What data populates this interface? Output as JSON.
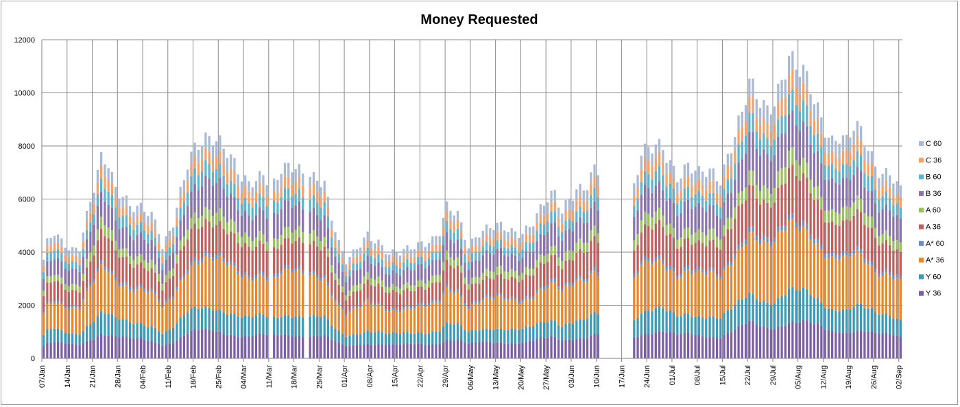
{
  "chart_data": {
    "type": "bar",
    "stacked": true,
    "title": "Money Requested",
    "xlabel": "",
    "ylabel": "",
    "ylim": [
      0,
      12000
    ],
    "ystep": 2000,
    "grid": true,
    "legend_position": "right",
    "x_start": "07/Jan",
    "days_total": 239,
    "gap_days": [
      {
        "from": 63,
        "to": 63
      },
      {
        "from": 73,
        "to": 73
      },
      {
        "from": 155,
        "to": 163
      }
    ],
    "tick_labels": [
      "07/Jan",
      "14/Jan",
      "21/Jan",
      "28/Jan",
      "04/Feb",
      "11/Feb",
      "18/Feb",
      "25/Feb",
      "04/Mar",
      "11/Mar",
      "18/Mar",
      "25/Mar",
      "01/Apr",
      "08/Apr",
      "15/Apr",
      "22/Apr",
      "29/Apr",
      "06/May",
      "13/May",
      "20/May",
      "27/May",
      "03/Jun",
      "10/Jun",
      "17/Jun",
      "24/Jun",
      "01/Jul",
      "08/Jul",
      "15/Jul",
      "22/Jul",
      "29/Jul",
      "05/Aug",
      "12/Aug",
      "19/Aug",
      "26/Aug",
      "02/Sep"
    ],
    "total_anchors": [
      {
        "day": 0,
        "value": 3650
      },
      {
        "day": 1,
        "value": 4300
      },
      {
        "day": 3,
        "value": 4750
      },
      {
        "day": 5,
        "value": 4450
      },
      {
        "day": 8,
        "value": 4150
      },
      {
        "day": 10,
        "value": 4200
      },
      {
        "day": 12,
        "value": 5300
      },
      {
        "day": 14,
        "value": 6300
      },
      {
        "day": 16,
        "value": 7400
      },
      {
        "day": 18,
        "value": 7350
      },
      {
        "day": 20,
        "value": 6450
      },
      {
        "day": 22,
        "value": 6300
      },
      {
        "day": 24,
        "value": 5800
      },
      {
        "day": 27,
        "value": 5600
      },
      {
        "day": 30,
        "value": 5300
      },
      {
        "day": 32,
        "value": 4800
      },
      {
        "day": 33,
        "value": 4200
      },
      {
        "day": 34,
        "value": 4500
      },
      {
        "day": 36,
        "value": 5200
      },
      {
        "day": 38,
        "value": 6300
      },
      {
        "day": 40,
        "value": 7300
      },
      {
        "day": 42,
        "value": 7800
      },
      {
        "day": 45,
        "value": 8200
      },
      {
        "day": 47,
        "value": 8380
      },
      {
        "day": 49,
        "value": 8250
      },
      {
        "day": 51,
        "value": 7900
      },
      {
        "day": 53,
        "value": 7300
      },
      {
        "day": 55,
        "value": 6700
      },
      {
        "day": 57,
        "value": 6450
      },
      {
        "day": 59,
        "value": 6700
      },
      {
        "day": 61,
        "value": 7000
      },
      {
        "day": 62,
        "value": 6900
      },
      {
        "day": 64,
        "value": 6700
      },
      {
        "day": 66,
        "value": 7200
      },
      {
        "day": 70,
        "value": 7050
      },
      {
        "day": 72,
        "value": 6800
      },
      {
        "day": 74,
        "value": 6800
      },
      {
        "day": 76,
        "value": 6900
      },
      {
        "day": 78,
        "value": 6700
      },
      {
        "day": 80,
        "value": 5400
      },
      {
        "day": 82,
        "value": 4300
      },
      {
        "day": 84,
        "value": 3600
      },
      {
        "day": 86,
        "value": 3900
      },
      {
        "day": 90,
        "value": 4700
      },
      {
        "day": 93,
        "value": 4400
      },
      {
        "day": 96,
        "value": 3900
      },
      {
        "day": 99,
        "value": 3950
      },
      {
        "day": 102,
        "value": 4200
      },
      {
        "day": 105,
        "value": 4400
      },
      {
        "day": 108,
        "value": 4450
      },
      {
        "day": 110,
        "value": 4700
      },
      {
        "day": 112,
        "value": 5600
      },
      {
        "day": 115,
        "value": 5400
      },
      {
        "day": 118,
        "value": 4300
      },
      {
        "day": 121,
        "value": 4800
      },
      {
        "day": 124,
        "value": 4900
      },
      {
        "day": 127,
        "value": 4900
      },
      {
        "day": 130,
        "value": 4750
      },
      {
        "day": 133,
        "value": 4800
      },
      {
        "day": 136,
        "value": 5200
      },
      {
        "day": 139,
        "value": 5800
      },
      {
        "day": 142,
        "value": 6150
      },
      {
        "day": 144,
        "value": 5500
      },
      {
        "day": 146,
        "value": 6100
      },
      {
        "day": 148,
        "value": 6400
      },
      {
        "day": 151,
        "value": 6500
      },
      {
        "day": 153,
        "value": 7050
      },
      {
        "day": 164,
        "value": 6450
      },
      {
        "day": 166,
        "value": 7650
      },
      {
        "day": 168,
        "value": 7700
      },
      {
        "day": 170,
        "value": 7950
      },
      {
        "day": 172,
        "value": 7950
      },
      {
        "day": 174,
        "value": 7500
      },
      {
        "day": 176,
        "value": 6950
      },
      {
        "day": 179,
        "value": 7250
      },
      {
        "day": 182,
        "value": 6850
      },
      {
        "day": 185,
        "value": 7000
      },
      {
        "day": 188,
        "value": 6800
      },
      {
        "day": 190,
        "value": 7700
      },
      {
        "day": 192,
        "value": 8500
      },
      {
        "day": 194,
        "value": 9200
      },
      {
        "day": 196,
        "value": 10300
      },
      {
        "day": 198,
        "value": 9800
      },
      {
        "day": 201,
        "value": 9400
      },
      {
        "day": 203,
        "value": 9800
      },
      {
        "day": 205,
        "value": 10500
      },
      {
        "day": 207,
        "value": 11300
      },
      {
        "day": 209,
        "value": 10800
      },
      {
        "day": 211,
        "value": 10700
      },
      {
        "day": 213,
        "value": 10200
      },
      {
        "day": 215,
        "value": 9500
      },
      {
        "day": 217,
        "value": 8800
      },
      {
        "day": 219,
        "value": 8200
      },
      {
        "day": 221,
        "value": 8300
      },
      {
        "day": 223,
        "value": 8000
      },
      {
        "day": 225,
        "value": 8600
      },
      {
        "day": 227,
        "value": 8550
      },
      {
        "day": 229,
        "value": 8000
      },
      {
        "day": 231,
        "value": 7400
      },
      {
        "day": 233,
        "value": 7000
      },
      {
        "day": 235,
        "value": 7000
      },
      {
        "day": 237,
        "value": 6400
      },
      {
        "day": 238,
        "value": 6250
      }
    ],
    "series": [
      {
        "name": "Y 36",
        "color": "#7b5ea6",
        "share": 0.125
      },
      {
        "name": "Y 60",
        "color": "#3c9ab6",
        "share": 0.105
      },
      {
        "name": "A* 36",
        "color": "#e7862e",
        "share": 0.225
      },
      {
        "name": "A* 60",
        "color": "#6a8ec3",
        "share": 0.018
      },
      {
        "name": "A 36",
        "color": "#c0605e",
        "share": 0.15
      },
      {
        "name": "A 60",
        "color": "#9bc060",
        "share": 0.055
      },
      {
        "name": "B 36",
        "color": "#8b73ae",
        "share": 0.13
      },
      {
        "name": "B 60",
        "color": "#5fb3cc",
        "share": 0.067
      },
      {
        "name": "C 36",
        "color": "#f2a26a",
        "share": 0.06
      },
      {
        "name": "C 60",
        "color": "#a9bad6",
        "share": 0.065
      }
    ],
    "legend_order": [
      "C 60",
      "C 36",
      "B 60",
      "B 36",
      "A 60",
      "A 36",
      "A* 60",
      "A* 36",
      "Y 60",
      "Y 36"
    ]
  }
}
